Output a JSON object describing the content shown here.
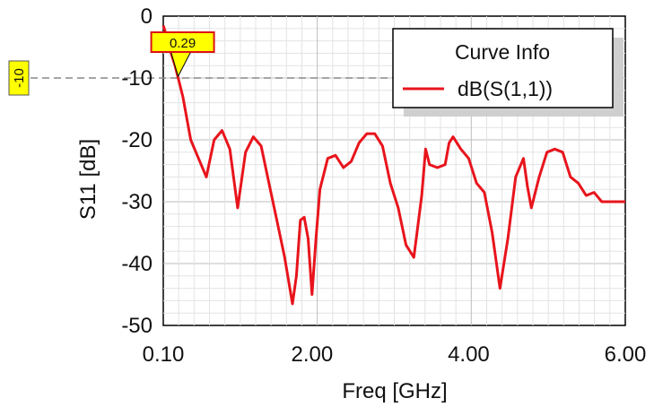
{
  "chart_data": {
    "type": "line",
    "xlabel": "Freq [GHz]",
    "ylabel": "S11 [dB]",
    "xlim": [
      0.1,
      6.0
    ],
    "ylim": [
      -50,
      0
    ],
    "x_tick_labels": [
      "0.10",
      "2.00",
      "4.00",
      "6.00"
    ],
    "x_tick_values": [
      0.1,
      2.0,
      4.0,
      6.0
    ],
    "y_tick_values": [
      0,
      -10,
      -20,
      -30,
      -40,
      -50
    ],
    "y_tick_labels": [
      "0",
      "-10",
      "-20",
      "-30",
      "-40",
      "-50"
    ],
    "grid": true,
    "legend": {
      "title": "Curve Info",
      "placement": "top-right",
      "entries": [
        "dB(S(1,1))"
      ]
    },
    "series_color": "#e8141c",
    "reference_line": {
      "y": -10,
      "label": "-10",
      "style": "dashed"
    },
    "marker": {
      "x": 0.29,
      "label": "0.29"
    },
    "series": [
      {
        "name": "dB(S(1,1))",
        "x": [
          0.1,
          0.15,
          0.2,
          0.25,
          0.29,
          0.35,
          0.45,
          0.55,
          0.65,
          0.75,
          0.85,
          0.95,
          1.05,
          1.15,
          1.25,
          1.35,
          1.45,
          1.55,
          1.65,
          1.75,
          1.8,
          1.85,
          1.9,
          1.95,
          2.0,
          2.05,
          2.1,
          2.2,
          2.3,
          2.4,
          2.5,
          2.6,
          2.7,
          2.8,
          2.9,
          3.0,
          3.1,
          3.2,
          3.3,
          3.4,
          3.45,
          3.5,
          3.6,
          3.7,
          3.75,
          3.8,
          3.9,
          4.0,
          4.1,
          4.2,
          4.3,
          4.4,
          4.5,
          4.6,
          4.7,
          4.75,
          4.8,
          4.9,
          5.0,
          5.1,
          5.2,
          5.25,
          5.3,
          5.4,
          5.5,
          5.6,
          5.7,
          5.8,
          5.9,
          6.0
        ],
        "y": [
          -1.5,
          -3.5,
          -6.0,
          -8.0,
          -10.0,
          -13.0,
          -20.0,
          -23.0,
          -26.0,
          -20.0,
          -18.5,
          -21.5,
          -31.0,
          -22.0,
          -19.5,
          -21.0,
          -27.0,
          -33.0,
          -39.0,
          -46.5,
          -42.0,
          -33.0,
          -32.5,
          -36.0,
          -45.0,
          -36.0,
          -28.0,
          -23.0,
          -22.5,
          -24.5,
          -23.5,
          -20.5,
          -19.0,
          -19.0,
          -21.0,
          -27.0,
          -31.0,
          -37.0,
          -39.0,
          -29.0,
          -21.5,
          -24.0,
          -24.5,
          -24.0,
          -20.5,
          -19.5,
          -21.5,
          -23.0,
          -27.0,
          -28.5,
          -35.0,
          -44.0,
          -36.0,
          -26.0,
          -23.0,
          -27.5,
          -31.0,
          -26.0,
          -22.0,
          -21.5,
          -22.0,
          -24.0,
          -26.0,
          -27.0,
          -29.0,
          -28.5,
          -30.0,
          -30.0,
          -30.0,
          -30.0
        ]
      }
    ]
  }
}
